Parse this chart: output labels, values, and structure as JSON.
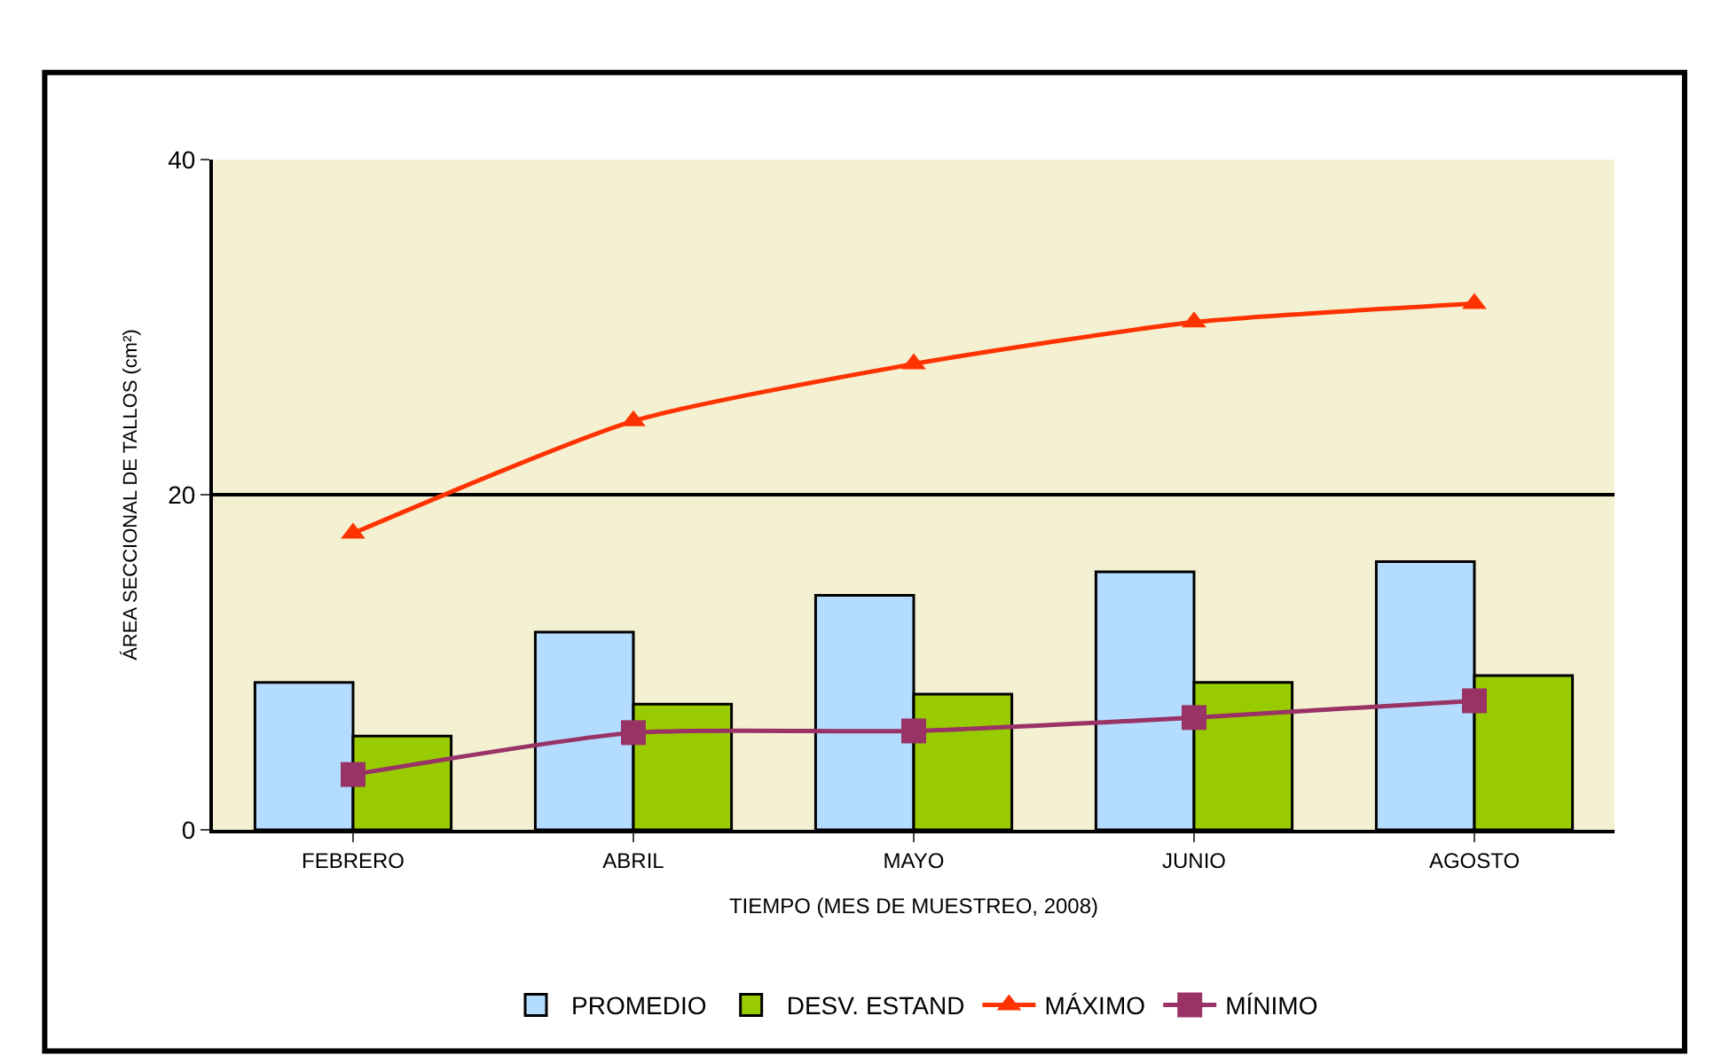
{
  "chart_data": {
    "type": "bar",
    "xlabel": "TIEMPO (MES DE MUESTREO, 2008)",
    "ylabel": "ÁREA SECCIONAL DE TALLOS (cm²)",
    "categories": [
      "FEBRERO",
      "ABRIL",
      "MAYO",
      "JUNIO",
      "AGOSTO"
    ],
    "series": [
      {
        "name": "PROMEDIO",
        "color": "#b3dcff",
        "values": [
          8.8,
          11.8,
          14,
          15.4,
          16
        ]
      },
      {
        "name": "DESV. ESTAND",
        "color": "#99cc00",
        "values": [
          5.6,
          7.5,
          8.1,
          8.8,
          9.2
        ]
      },
      {
        "name": "MÁXIMO",
        "type": "line",
        "color": "#ff3300",
        "marker": "triangle",
        "values": [
          17.7,
          24.4,
          27.8,
          30.3,
          31.4
        ]
      },
      {
        "name": "MÍNIMO",
        "type": "line",
        "color": "#993366",
        "marker": "square",
        "values": [
          3.3,
          5.8,
          5.9,
          6.7,
          7.7
        ]
      }
    ],
    "ylim": [
      0,
      40
    ],
    "yticks": [
      0,
      20,
      40
    ],
    "grid": "y",
    "legend": "bottom"
  }
}
